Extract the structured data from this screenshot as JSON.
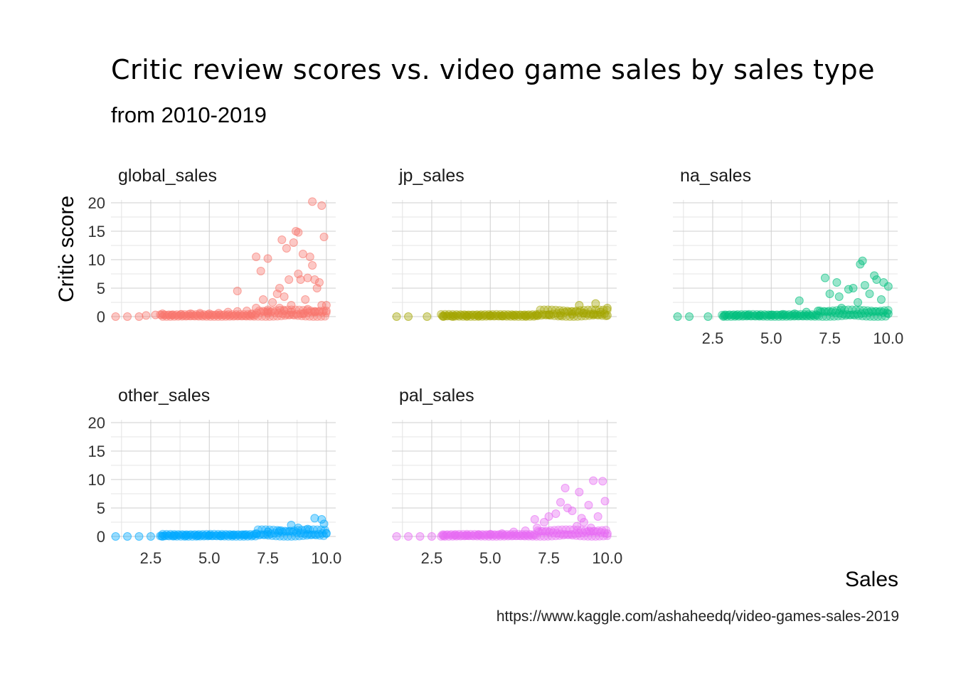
{
  "chart_data": {
    "type": "scatter",
    "title": "Critic review scores vs. video game sales by sales type",
    "subtitle": "from 2010-2019",
    "xlabel": "Sales",
    "ylabel": "Critic score",
    "caption": "https://www.kaggle.com/ashaheedq/video-games-sales-2019",
    "xlim": [
      0.8,
      10.4
    ],
    "ylim": [
      -0.5,
      20.5
    ],
    "x_ticks": [
      "2.5",
      "5.0",
      "7.5",
      "10.0"
    ],
    "x_tick_values": [
      2.5,
      5.0,
      7.5,
      10.0
    ],
    "y_ticks": [
      "0",
      "5",
      "10",
      "15",
      "20"
    ],
    "y_tick_values": [
      0,
      5,
      10,
      15,
      20
    ],
    "grid": true,
    "legend": "none",
    "facets": [
      {
        "name": "global_sales",
        "color": "#F8766D",
        "points": [
          [
            1.0,
            0
          ],
          [
            1.5,
            0
          ],
          [
            2.0,
            0
          ],
          [
            2.3,
            0.2
          ],
          [
            2.7,
            0.3
          ],
          [
            3.0,
            0.5
          ],
          [
            3.4,
            0.3
          ],
          [
            3.8,
            0.4
          ],
          [
            4.2,
            0.5
          ],
          [
            4.6,
            0.6
          ],
          [
            5.0,
            0.5
          ],
          [
            5.4,
            0.6
          ],
          [
            5.8,
            0.8
          ],
          [
            6.2,
            4.5
          ],
          [
            6.2,
            0.9
          ],
          [
            6.6,
            1.0
          ],
          [
            7.0,
            1.5
          ],
          [
            7.0,
            10.5
          ],
          [
            7.2,
            8.0
          ],
          [
            7.3,
            3.0
          ],
          [
            7.5,
            10.2
          ],
          [
            7.5,
            1.2
          ],
          [
            7.7,
            2.5
          ],
          [
            7.9,
            4.0
          ],
          [
            8.0,
            5.0
          ],
          [
            8.1,
            13.5
          ],
          [
            8.2,
            3.5
          ],
          [
            8.3,
            12.0
          ],
          [
            8.4,
            6.5
          ],
          [
            8.5,
            2.0
          ],
          [
            8.6,
            13.0
          ],
          [
            8.7,
            15.0
          ],
          [
            8.8,
            14.8
          ],
          [
            8.8,
            7.5
          ],
          [
            8.9,
            6.5
          ],
          [
            9.0,
            11.0
          ],
          [
            9.1,
            3.0
          ],
          [
            9.2,
            6.8
          ],
          [
            9.3,
            10.5
          ],
          [
            9.4,
            9.0
          ],
          [
            9.4,
            20.2
          ],
          [
            9.5,
            6.5
          ],
          [
            9.6,
            5.0
          ],
          [
            9.7,
            6.0
          ],
          [
            9.8,
            19.5
          ],
          [
            9.8,
            2.0
          ],
          [
            9.9,
            14.0
          ],
          [
            10.0,
            2.0
          ],
          [
            10.0,
            1.0
          ],
          [
            8.0,
            1.5
          ],
          [
            8.5,
            0.8
          ],
          [
            9.0,
            0.5
          ],
          [
            9.5,
            0.8
          ],
          [
            7.5,
            0.6
          ],
          [
            6.8,
            0.5
          ],
          [
            8.2,
            1.0
          ],
          [
            9.2,
            1.3
          ]
        ]
      },
      {
        "name": "jp_sales",
        "color": "#A3A500",
        "points": [
          [
            1.0,
            0
          ],
          [
            1.5,
            0
          ],
          [
            2.3,
            0
          ],
          [
            3.0,
            0
          ],
          [
            3.4,
            0
          ],
          [
            4.0,
            0.1
          ],
          [
            4.5,
            0.1
          ],
          [
            5.0,
            0.2
          ],
          [
            5.5,
            0.1
          ],
          [
            6.0,
            0.2
          ],
          [
            6.5,
            0.1
          ],
          [
            7.0,
            0.2
          ],
          [
            7.5,
            0.3
          ],
          [
            8.0,
            0.2
          ],
          [
            8.5,
            0.4
          ],
          [
            8.8,
            2.0
          ],
          [
            9.0,
            0.6
          ],
          [
            9.4,
            0.5
          ],
          [
            9.5,
            2.3
          ],
          [
            9.7,
            0.8
          ],
          [
            10.0,
            1.5
          ],
          [
            10.0,
            0.2
          ]
        ]
      },
      {
        "name": "na_sales",
        "color": "#00BF7D",
        "points": [
          [
            1.0,
            0
          ],
          [
            1.5,
            0
          ],
          [
            2.3,
            0
          ],
          [
            3.0,
            0.1
          ],
          [
            3.5,
            0.2
          ],
          [
            4.0,
            0.3
          ],
          [
            4.5,
            0.2
          ],
          [
            5.0,
            0.3
          ],
          [
            5.5,
            0.4
          ],
          [
            6.0,
            0.5
          ],
          [
            6.2,
            2.8
          ],
          [
            6.5,
            0.8
          ],
          [
            7.0,
            1.0
          ],
          [
            7.3,
            6.8
          ],
          [
            7.5,
            4.0
          ],
          [
            7.8,
            6.0
          ],
          [
            7.9,
            3.5
          ],
          [
            8.0,
            1.5
          ],
          [
            8.3,
            4.8
          ],
          [
            8.5,
            5.0
          ],
          [
            8.7,
            2.5
          ],
          [
            8.8,
            9.2
          ],
          [
            8.9,
            9.8
          ],
          [
            9.0,
            5.5
          ],
          [
            9.2,
            4.0
          ],
          [
            9.4,
            7.2
          ],
          [
            9.5,
            6.5
          ],
          [
            9.7,
            3.0
          ],
          [
            9.8,
            6.0
          ],
          [
            10.0,
            5.3
          ],
          [
            10.0,
            0.5
          ]
        ]
      },
      {
        "name": "other_sales",
        "color": "#00A9FF",
        "points": [
          [
            1.0,
            0
          ],
          [
            1.5,
            0
          ],
          [
            2.0,
            0
          ],
          [
            2.5,
            0
          ],
          [
            3.0,
            0
          ],
          [
            3.5,
            0.1
          ],
          [
            4.0,
            0.1
          ],
          [
            4.5,
            0.1
          ],
          [
            5.0,
            0.2
          ],
          [
            5.5,
            0.1
          ],
          [
            6.0,
            0.2
          ],
          [
            6.5,
            0.3
          ],
          [
            7.0,
            0.5
          ],
          [
            7.5,
            0.8
          ],
          [
            8.0,
            1.0
          ],
          [
            8.5,
            2.0
          ],
          [
            8.8,
            1.5
          ],
          [
            9.2,
            1.3
          ],
          [
            9.5,
            3.2
          ],
          [
            9.8,
            3.0
          ],
          [
            9.9,
            2.2
          ],
          [
            10.0,
            0.5
          ]
        ]
      },
      {
        "name": "pal_sales",
        "color": "#E76BF3",
        "points": [
          [
            1.0,
            0
          ],
          [
            1.5,
            0
          ],
          [
            2.0,
            0
          ],
          [
            2.5,
            0
          ],
          [
            3.0,
            0.1
          ],
          [
            3.5,
            0.2
          ],
          [
            4.0,
            0.2
          ],
          [
            4.5,
            0.3
          ],
          [
            5.0,
            0.4
          ],
          [
            5.5,
            0.5
          ],
          [
            6.0,
            0.8
          ],
          [
            6.5,
            1.0
          ],
          [
            6.9,
            3.0
          ],
          [
            7.0,
            1.5
          ],
          [
            7.3,
            2.5
          ],
          [
            7.5,
            3.5
          ],
          [
            7.8,
            4.0
          ],
          [
            8.0,
            6.0
          ],
          [
            8.2,
            8.5
          ],
          [
            8.3,
            5.0
          ],
          [
            8.5,
            4.5
          ],
          [
            8.8,
            7.8
          ],
          [
            8.9,
            3.2
          ],
          [
            9.0,
            2.5
          ],
          [
            9.2,
            5.5
          ],
          [
            9.4,
            9.8
          ],
          [
            9.6,
            3.5
          ],
          [
            9.8,
            9.7
          ],
          [
            9.9,
            6.2
          ],
          [
            10.0,
            0.5
          ],
          [
            9.3,
            1.5
          ],
          [
            8.7,
            1.8
          ]
        ]
      }
    ]
  }
}
